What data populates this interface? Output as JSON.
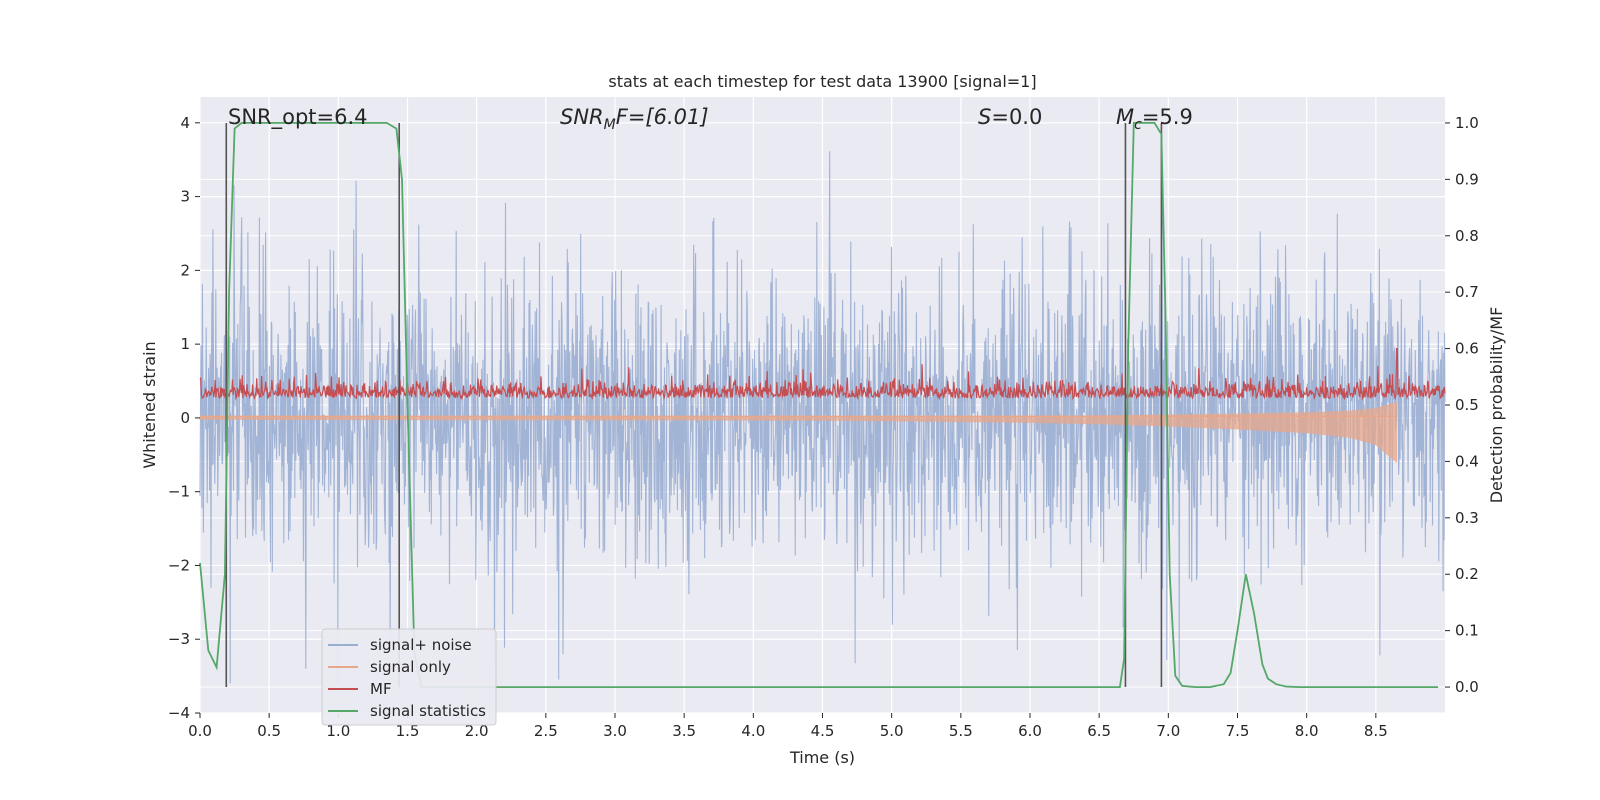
{
  "chart_data": {
    "type": "line",
    "title": "stats at each timestep for test data 13900 [signal=1]",
    "xlabel": "Time (s)",
    "ylabel_left": "Whitened strain",
    "ylabel_right": "Detection probability/MF",
    "xlim": [
      0,
      9.0
    ],
    "ylim_left": [
      -4.0,
      4.35
    ],
    "ylim_right": [
      -0.046,
      1.046
    ],
    "x_ticks": [
      "0.0",
      "0.5",
      "1.0",
      "1.5",
      "2.0",
      "2.5",
      "3.0",
      "3.5",
      "4.0",
      "4.5",
      "5.0",
      "5.5",
      "6.0",
      "6.5",
      "7.0",
      "7.5",
      "8.0",
      "8.5"
    ],
    "y_left_ticks": [
      "−4",
      "−3",
      "−2",
      "−1",
      "0",
      "1",
      "2",
      "3",
      "4"
    ],
    "y_right_ticks": [
      "0.0",
      "0.1",
      "0.2",
      "0.3",
      "0.4",
      "0.5",
      "0.6",
      "0.7",
      "0.8",
      "0.9",
      "1.0"
    ],
    "grid": true,
    "legend_position": "lower-left",
    "annotations": {
      "snr_opt": "SNR_opt=6.4",
      "snr_mf_base": "SNR",
      "snr_mf_sub": "M",
      "snr_mf_rest": "F=[6.01]",
      "s_value_symbol": "S",
      "s_value_rest": "=0.0",
      "mc_symbol": "M",
      "mc_sub": "c",
      "mc_rest": "=5.9"
    },
    "vertical_lines_x": [
      0.19,
      1.44,
      6.69,
      6.95
    ],
    "series": [
      {
        "name": "signal+ noise",
        "color": "#9aaed1",
        "axis": "left",
        "envelope_note": "dense noise, approx range",
        "approx_range": [
          -3.6,
          4.0
        ]
      },
      {
        "name": "signal only",
        "color": "#e8a78a",
        "axis": "left",
        "x": [
          0.0,
          4.5,
          5.5,
          6.0,
          6.5,
          7.0,
          7.5,
          8.0,
          8.3,
          8.5,
          8.65
        ],
        "amplitude": [
          0.02,
          0.03,
          0.05,
          0.06,
          0.08,
          0.11,
          0.15,
          0.2,
          0.26,
          0.36,
          0.6
        ]
      },
      {
        "name": "MF",
        "color": "#c44e52",
        "axis": "right",
        "approx_range": [
          0.5,
          0.6
        ],
        "spike": {
          "x": 8.65,
          "y": 0.6
        }
      },
      {
        "name": "signal statistics",
        "color": "#55a868",
        "axis": "right",
        "x": [
          0.0,
          0.06,
          0.12,
          0.18,
          0.21,
          0.25,
          0.3,
          0.4,
          0.6,
          0.8,
          1.0,
          1.2,
          1.35,
          1.42,
          1.46,
          1.5,
          1.55,
          1.6,
          1.8,
          2.5,
          3.5,
          4.5,
          5.5,
          6.0,
          6.5,
          6.65,
          6.68,
          6.71,
          6.75,
          6.8,
          6.85,
          6.9,
          6.95,
          6.98,
          7.01,
          7.05,
          7.1,
          7.2,
          7.3,
          7.4,
          7.45,
          7.5,
          7.56,
          7.62,
          7.68,
          7.72,
          7.78,
          7.85,
          7.95,
          8.5,
          8.95
        ],
        "y": [
          0.22,
          0.065,
          0.035,
          0.2,
          0.7,
          0.99,
          1.0,
          1.0,
          1.0,
          1.0,
          1.0,
          1.0,
          1.0,
          0.99,
          0.9,
          0.5,
          0.06,
          0.0,
          0.0,
          0.0,
          0.0,
          0.0,
          0.0,
          0.0,
          0.0,
          0.0,
          0.05,
          0.6,
          1.0,
          1.0,
          1.0,
          1.0,
          0.98,
          0.65,
          0.2,
          0.02,
          0.002,
          0.0,
          0.0,
          0.005,
          0.025,
          0.1,
          0.2,
          0.13,
          0.04,
          0.015,
          0.005,
          0.001,
          0.0,
          0.0,
          0.0
        ]
      }
    ]
  }
}
